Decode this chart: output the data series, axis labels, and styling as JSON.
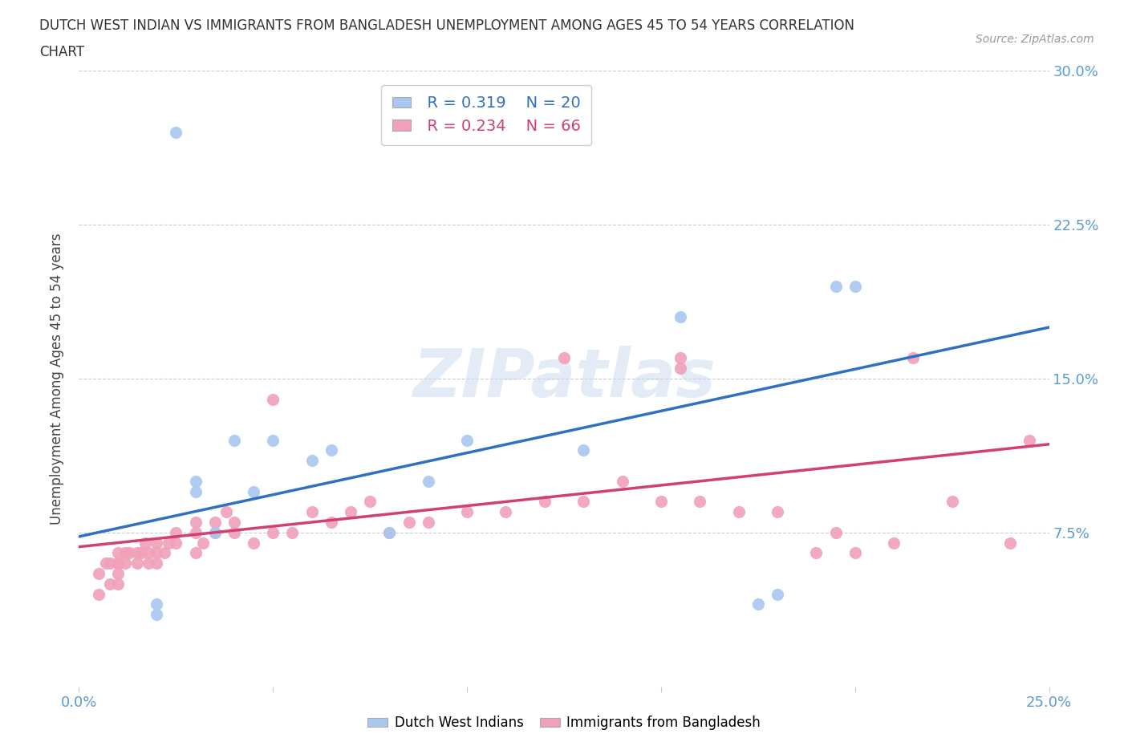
{
  "title_line1": "DUTCH WEST INDIAN VS IMMIGRANTS FROM BANGLADESH UNEMPLOYMENT AMONG AGES 45 TO 54 YEARS CORRELATION",
  "title_line2": "CHART",
  "source": "Source: ZipAtlas.com",
  "ylabel": "Unemployment Among Ages 45 to 54 years",
  "xlim": [
    0.0,
    0.25
  ],
  "ylim": [
    0.0,
    0.3
  ],
  "xticks": [
    0.0,
    0.05,
    0.1,
    0.15,
    0.2,
    0.25
  ],
  "yticks": [
    0.0,
    0.075,
    0.15,
    0.225,
    0.3
  ],
  "xticklabels": [
    "0.0%",
    "",
    "",
    "",
    "",
    "25.0%"
  ],
  "yticklabels": [
    "",
    "7.5%",
    "15.0%",
    "22.5%",
    "30.0%"
  ],
  "blue_color": "#a8c8f0",
  "pink_color": "#f0a0b8",
  "blue_line_color": "#3070c0",
  "pink_line_color": "#d04070",
  "legend_R1": "R = 0.319",
  "legend_N1": "N = 20",
  "legend_R2": "R = 0.234",
  "legend_N2": "N = 66",
  "blue_line_x0": 0.0,
  "blue_line_y0": 0.073,
  "blue_line_x1": 0.25,
  "blue_line_y1": 0.175,
  "pink_line_x0": 0.0,
  "pink_line_y0": 0.068,
  "pink_line_x1": 0.25,
  "pink_line_y1": 0.118,
  "dutch_x": [
    0.02,
    0.02,
    0.025,
    0.03,
    0.03,
    0.035,
    0.04,
    0.045,
    0.05,
    0.06,
    0.065,
    0.08,
    0.09,
    0.1,
    0.13,
    0.155,
    0.175,
    0.18,
    0.195,
    0.2
  ],
  "dutch_y": [
    0.04,
    0.035,
    0.27,
    0.1,
    0.095,
    0.075,
    0.12,
    0.095,
    0.12,
    0.11,
    0.115,
    0.075,
    0.1,
    0.12,
    0.115,
    0.18,
    0.04,
    0.045,
    0.195,
    0.195
  ],
  "bangladesh_x": [
    0.005,
    0.005,
    0.007,
    0.008,
    0.008,
    0.01,
    0.01,
    0.01,
    0.01,
    0.01,
    0.012,
    0.012,
    0.013,
    0.015,
    0.015,
    0.016,
    0.017,
    0.018,
    0.018,
    0.02,
    0.02,
    0.02,
    0.022,
    0.023,
    0.025,
    0.025,
    0.03,
    0.03,
    0.03,
    0.032,
    0.035,
    0.035,
    0.038,
    0.04,
    0.04,
    0.045,
    0.05,
    0.05,
    0.055,
    0.06,
    0.065,
    0.07,
    0.075,
    0.08,
    0.085,
    0.09,
    0.1,
    0.11,
    0.12,
    0.125,
    0.13,
    0.14,
    0.15,
    0.155,
    0.155,
    0.16,
    0.17,
    0.18,
    0.19,
    0.195,
    0.2,
    0.21,
    0.215,
    0.225,
    0.24,
    0.245
  ],
  "bangladesh_y": [
    0.055,
    0.045,
    0.06,
    0.06,
    0.05,
    0.06,
    0.055,
    0.065,
    0.06,
    0.05,
    0.06,
    0.065,
    0.065,
    0.065,
    0.06,
    0.065,
    0.07,
    0.065,
    0.06,
    0.065,
    0.06,
    0.07,
    0.065,
    0.07,
    0.075,
    0.07,
    0.075,
    0.08,
    0.065,
    0.07,
    0.08,
    0.075,
    0.085,
    0.075,
    0.08,
    0.07,
    0.075,
    0.14,
    0.075,
    0.085,
    0.08,
    0.085,
    0.09,
    0.075,
    0.08,
    0.08,
    0.085,
    0.085,
    0.09,
    0.16,
    0.09,
    0.1,
    0.09,
    0.155,
    0.16,
    0.09,
    0.085,
    0.085,
    0.065,
    0.075,
    0.065,
    0.07,
    0.16,
    0.09,
    0.07,
    0.12
  ]
}
